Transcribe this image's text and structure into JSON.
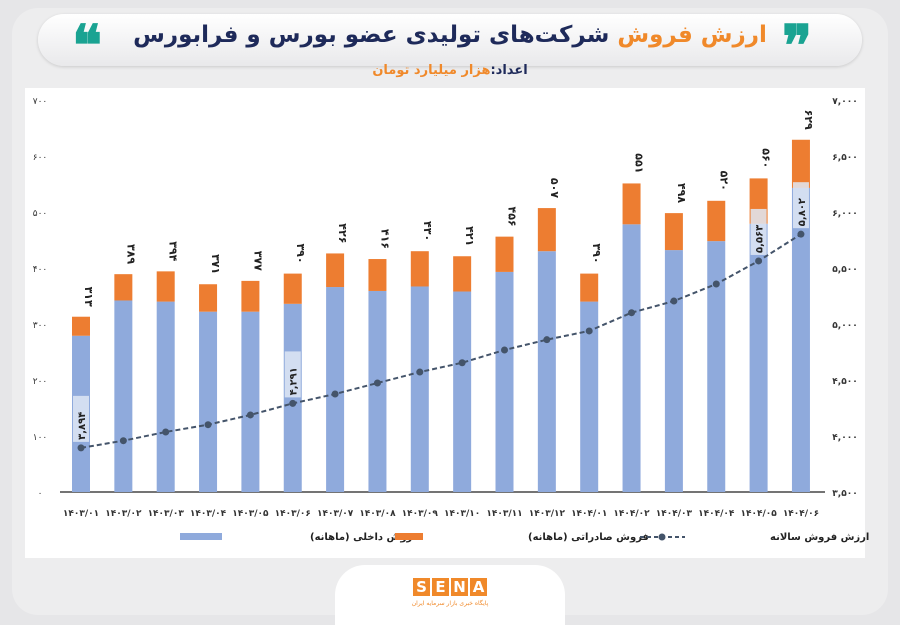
{
  "header": {
    "title_highlight": "ارزش فروش",
    "title_rest": "شرکت‌های تولیدی عضو بورس و فرابورس",
    "subtitle_label": "اعداد:",
    "subtitle_unit": "هزار میلیارد تومان",
    "open_quote": "❝",
    "close_quote": "❞"
  },
  "logo": {
    "letters": [
      "S",
      "E",
      "N",
      "A"
    ],
    "tagline": "پایگاه خبری بازار سرمایه ایران"
  },
  "colors": {
    "domestic": "#8faadc",
    "export": "#ed7d31",
    "annual": "#44546a",
    "accent": "#f0892a",
    "title": "#1e2a5a",
    "quote": "#1aa392"
  },
  "chart_data": {
    "type": "bar",
    "stacked": true,
    "title": "ارزش فروش شرکت‌های تولیدی عضو بورس و فرابورس",
    "subtitle": "اعداد: هزار میلیارد تومان",
    "categories": [
      "۱۴۰۳/۰۱",
      "۱۴۰۳/۰۲",
      "۱۴۰۳/۰۳",
      "۱۴۰۳/۰۴",
      "۱۴۰۳/۰۵",
      "۱۴۰۳/۰۶",
      "۱۴۰۳/۰۷",
      "۱۴۰۳/۰۸",
      "۱۴۰۳/۰۹",
      "۱۴۰۳/۱۰",
      "۱۴۰۳/۱۱",
      "۱۴۰۳/۱۲",
      "۱۴۰۴/۰۱",
      "۱۴۰۴/۰۲",
      "۱۴۰۴/۰۳",
      "۱۴۰۴/۰۴",
      "۱۴۰۴/۰۵",
      "۱۴۰۴/۰۶"
    ],
    "series": [
      {
        "name": "فروش داخلی (ماهانه)",
        "axis": "left",
        "kind": "bar",
        "values": [
          279,
          342,
          340,
          322,
          322,
          336,
          366,
          359,
          367,
          358,
          393,
          430,
          340,
          478,
          432,
          448,
          479,
          543
        ]
      },
      {
        "name": "فروش صادراتی (ماهانه)",
        "axis": "left",
        "kind": "bar",
        "values": [
          34,
          47,
          54,
          49,
          55,
          54,
          60,
          57,
          63,
          63,
          63,
          77,
          50,
          73,
          66,
          72,
          81,
          86
        ]
      },
      {
        "name": "ارزش فروش سالانه",
        "axis": "right",
        "kind": "line",
        "style": "dashed",
        "values": [
          3894,
          3958,
          4036,
          4101,
          4188,
          4291,
          4375,
          4473,
          4571,
          4654,
          4768,
          4860,
          4938,
          5101,
          5205,
          5357,
          5563,
          5802
        ]
      }
    ],
    "totals": [
      313,
      389,
      394,
      371,
      377,
      390,
      426,
      416,
      430,
      421,
      456,
      507,
      390,
      551,
      498,
      520,
      560,
      629
    ],
    "total_labels": [
      "۳۱۳",
      "۳۸۹",
      "۳۹۴",
      "۳۷۱",
      "۳۷۷",
      "۳۹۰",
      "۴۲۶",
      "۴۱۶",
      "۴۳۰",
      "۴۲۱",
      "۴۵۶",
      "۵۰۷",
      "۳۹۰",
      "۵۵۱",
      "۴۹۸",
      "۵۲۰",
      "۵۶۰",
      "۶۲۹"
    ],
    "line_labels": [
      {
        "index": 0,
        "text": "۳,۸۹۴"
      },
      {
        "index": 5,
        "text": "۴,۲۹۱"
      },
      {
        "index": 16,
        "text": "۵,۵۶۳"
      },
      {
        "index": 17,
        "text": "۵,۸۰۲"
      }
    ],
    "left_axis": {
      "range": [
        0,
        700
      ],
      "ticks": [
        "۰",
        "۱۰۰",
        "۲۰۰",
        "۳۰۰",
        "۴۰۰",
        "۵۰۰",
        "۶۰۰",
        "۷۰۰"
      ]
    },
    "right_axis": {
      "range": [
        3500,
        7000
      ],
      "ticks": [
        "۳,۵۰۰",
        "۴,۰۰۰",
        "۴,۵۰۰",
        "۵,۰۰۰",
        "۵,۵۰۰",
        "۶,۰۰۰",
        "۶,۵۰۰",
        "۷,۰۰۰"
      ]
    },
    "grid": false,
    "legend_position": "bottom"
  }
}
